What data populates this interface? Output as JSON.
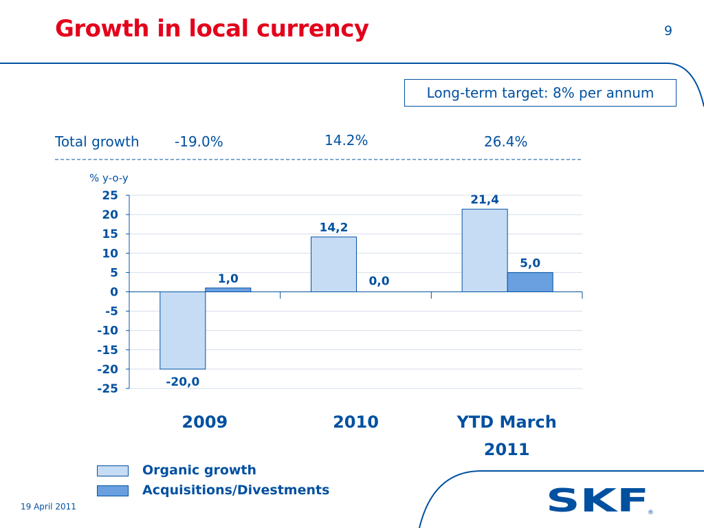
{
  "slide": {
    "title": "Growth in local currency",
    "page_number": "9",
    "date": "19 April 2011"
  },
  "target_box": {
    "text": "Long-term target: 8% per annum"
  },
  "total_growth": {
    "label": "Total growth",
    "values": [
      "-19.0%",
      "14.2%",
      "26.4%"
    ]
  },
  "logo": {
    "text": "SKF"
  },
  "colors": {
    "title": "#e3001b",
    "text": "#0050a0",
    "organic": "#c6dcf4",
    "acquisitions": "#6a9fe0",
    "grid": "#d4dcea"
  },
  "chart_data": {
    "type": "bar",
    "unit_label": "% y-o-y",
    "categories": [
      [
        "2009"
      ],
      [
        "2010"
      ],
      [
        "YTD March",
        "2011"
      ]
    ],
    "series": [
      {
        "name": "Organic growth",
        "values": [
          -20.0,
          14.2,
          21.4
        ],
        "labels": [
          "-20,0",
          "14,2",
          "21,4"
        ],
        "color": "#c6dcf4"
      },
      {
        "name": "Acquisitions/Divestments",
        "values": [
          1.0,
          0.0,
          5.0
        ],
        "labels": [
          "1,0",
          "0,0",
          "5,0"
        ],
        "color": "#6a9fe0"
      }
    ],
    "ylim": [
      -25,
      25
    ],
    "yticks": [
      25,
      20,
      15,
      10,
      5,
      0,
      -5,
      -10,
      -15,
      -20,
      -25
    ],
    "grid": true,
    "legend": "bottom-left"
  }
}
